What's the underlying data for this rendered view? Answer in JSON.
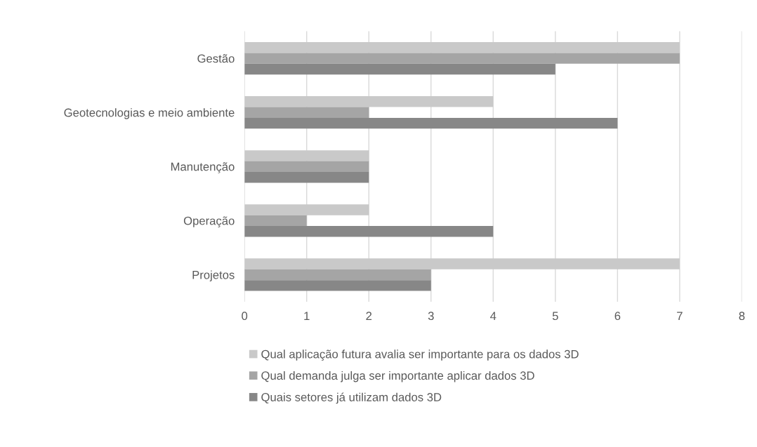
{
  "chart_data": {
    "type": "bar",
    "orientation": "horizontal",
    "categories": [
      "Gestão",
      "Geotecnologias e meio ambiente",
      "Manutenção",
      "Operação",
      "Projetos"
    ],
    "series": [
      {
        "name": "Qual aplicação futura avalia ser importante para os dados 3D",
        "color": "#c9c9c9",
        "values": [
          7,
          4,
          2,
          2,
          7
        ]
      },
      {
        "name": "Qual demanda julga ser importante aplicar dados 3D",
        "color": "#a5a5a5",
        "values": [
          7,
          2,
          2,
          1,
          3
        ]
      },
      {
        "name": "Quais setores já utilizam dados 3D",
        "color": "#878787",
        "values": [
          5,
          6,
          2,
          4,
          3
        ]
      }
    ],
    "xlim": [
      0,
      8
    ],
    "xticks": [
      0,
      1,
      2,
      3,
      4,
      5,
      6,
      7,
      8
    ],
    "grid": "x",
    "legend": "bottom"
  }
}
